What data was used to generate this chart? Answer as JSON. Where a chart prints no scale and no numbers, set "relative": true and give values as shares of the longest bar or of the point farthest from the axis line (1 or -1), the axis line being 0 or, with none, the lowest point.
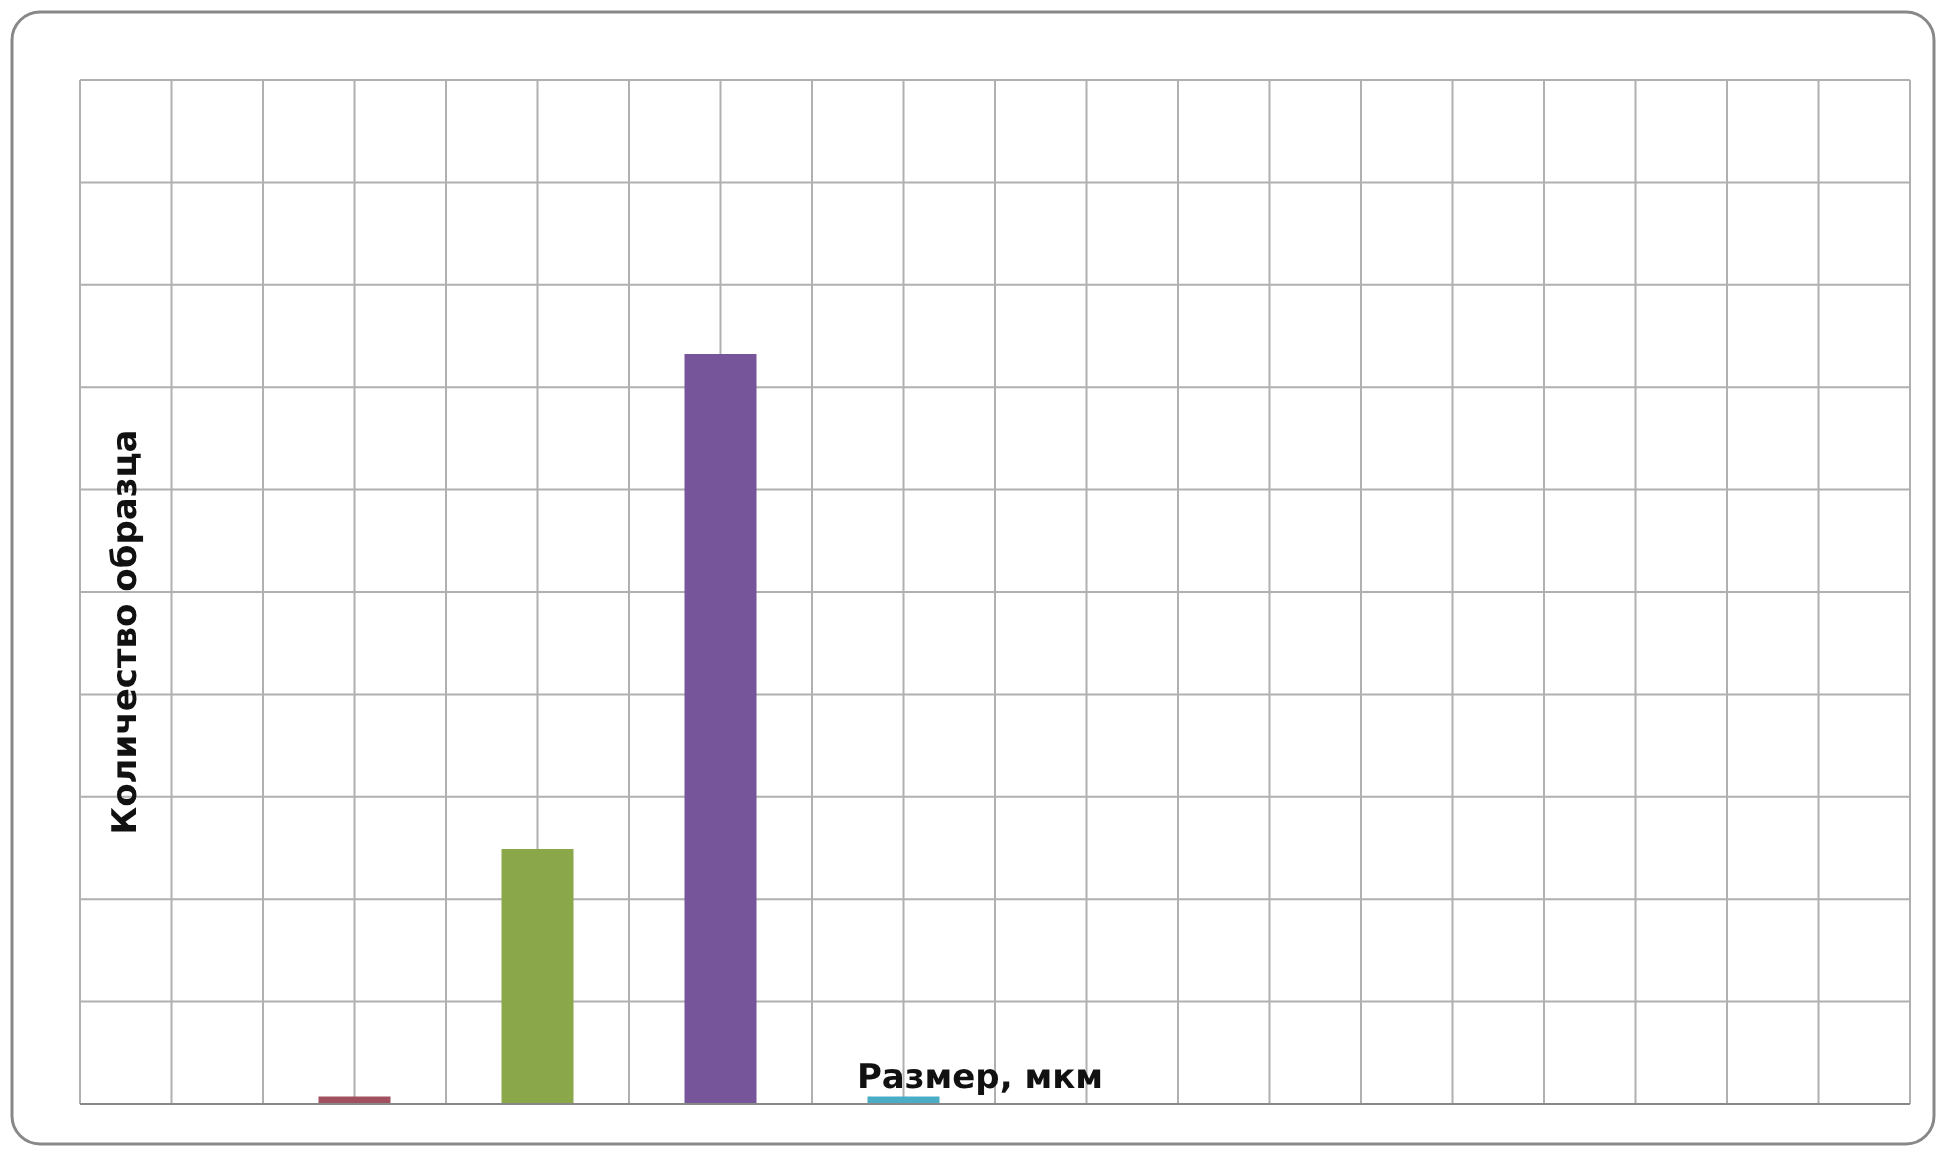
{
  "chart_data": {
    "type": "bar",
    "xlabel": "Размер, мкм",
    "ylabel": "Количество образца",
    "relative": true,
    "grid": true,
    "categories": [
      null,
      null,
      null,
      null
    ],
    "values": [
      0.01,
      0.34,
      1,
      0.01
    ],
    "colors": [
      "#a0505e",
      "#8aa84a",
      "#76559a",
      "#4bacc6"
    ]
  }
}
